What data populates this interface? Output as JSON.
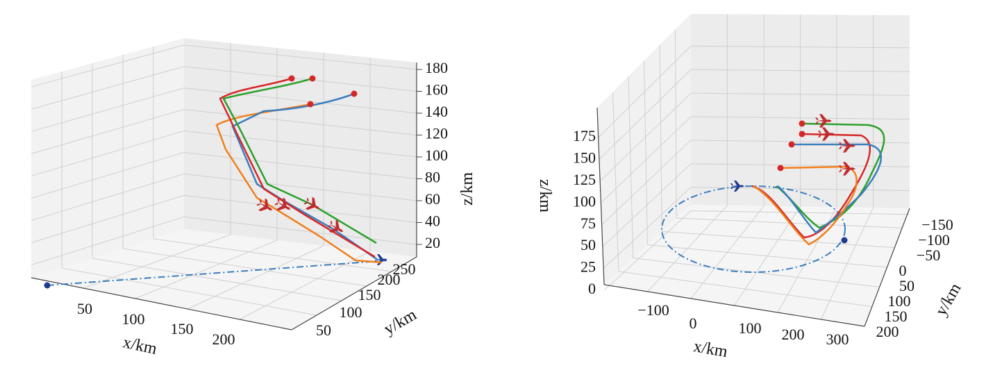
{
  "colors": {
    "blue": "#3b7dbd",
    "orange": "#f07f1c",
    "green": "#2ca02c",
    "red": "#d62728",
    "target": "#1f3a8f",
    "start_dot": "#d62728"
  },
  "chart_data": [
    {
      "type": "line3d",
      "title": "",
      "xlabel": "x/km",
      "ylabel": "y/km",
      "zlabel": "z/km",
      "x_ticks": [
        "50",
        "100",
        "150",
        "200"
      ],
      "y_ticks": [
        "50",
        "100",
        "150",
        "200",
        "250"
      ],
      "z_ticks": [
        "20",
        "40",
        "60",
        "80",
        "100",
        "120",
        "140",
        "160",
        "180"
      ],
      "series": [
        {
          "color": "blue",
          "points": [
            [
              60,
              220,
              158
            ],
            [
              40,
              240,
              145
            ],
            [
              35,
              240,
              120
            ],
            [
              100,
              240,
              70
            ],
            [
              170,
              250,
              15
            ]
          ]
        },
        {
          "color": "orange",
          "points": [
            [
              55,
              225,
              145
            ],
            [
              35,
              240,
              125
            ],
            [
              45,
              250,
              110
            ],
            [
              150,
              250,
              30
            ],
            [
              185,
              250,
              5
            ]
          ]
        },
        {
          "color": "green",
          "points": [
            [
              55,
              225,
              170
            ],
            [
              35,
              245,
              158
            ],
            [
              40,
              240,
              120
            ],
            [
              120,
              240,
              70
            ],
            [
              180,
              245,
              30
            ]
          ]
        },
        {
          "color": "red",
          "points": [
            [
              50,
              225,
              170
            ],
            [
              30,
              245,
              157
            ],
            [
              35,
              240,
              120
            ],
            [
              110,
              245,
              60
            ],
            [
              175,
              250,
              10
            ]
          ]
        }
      ],
      "target_track": {
        "color": "blue",
        "style": "dash-dot",
        "from": [
          0,
          50,
          0
        ],
        "to": [
          230,
          250,
          0
        ]
      }
    },
    {
      "type": "line3d",
      "title": "",
      "xlabel": "x/km",
      "ylabel": "y/km",
      "zlabel": "z/km",
      "x_ticks": [
        "−100",
        "0",
        "100",
        "200",
        "300"
      ],
      "y_ticks": [
        "−150",
        "−100",
        "−50",
        "0",
        "50",
        "100",
        "150",
        "200"
      ],
      "z_ticks": [
        "0",
        "25",
        "50",
        "75",
        "100",
        "125",
        "150",
        "175"
      ],
      "series": [
        {
          "color": "green",
          "points": [
            [
              60,
              -50,
              175
            ],
            [
              150,
              -60,
              170
            ],
            [
              180,
              -50,
              120
            ],
            [
              120,
              10,
              40
            ],
            [
              70,
              40,
              100
            ]
          ]
        },
        {
          "color": "red",
          "points": [
            [
              60,
              -40,
              165
            ],
            [
              150,
              -50,
              160
            ],
            [
              170,
              -40,
              110
            ],
            [
              110,
              20,
              30
            ],
            [
              40,
              60,
              100
            ]
          ]
        },
        {
          "color": "blue",
          "points": [
            [
              60,
              -30,
              155
            ],
            [
              150,
              -40,
              150
            ],
            [
              175,
              -30,
              105
            ],
            [
              115,
              15,
              40
            ],
            [
              80,
              50,
              100
            ]
          ]
        },
        {
          "color": "orange",
          "points": [
            [
              60,
              -10,
              130
            ],
            [
              150,
              -20,
              130
            ],
            [
              165,
              -20,
              90
            ],
            [
              120,
              20,
              25
            ],
            [
              40,
              60,
              100
            ]
          ]
        }
      ],
      "target_track": {
        "color": "blue",
        "style": "dash-dot",
        "shape": "circle",
        "radius": 150
      }
    }
  ]
}
